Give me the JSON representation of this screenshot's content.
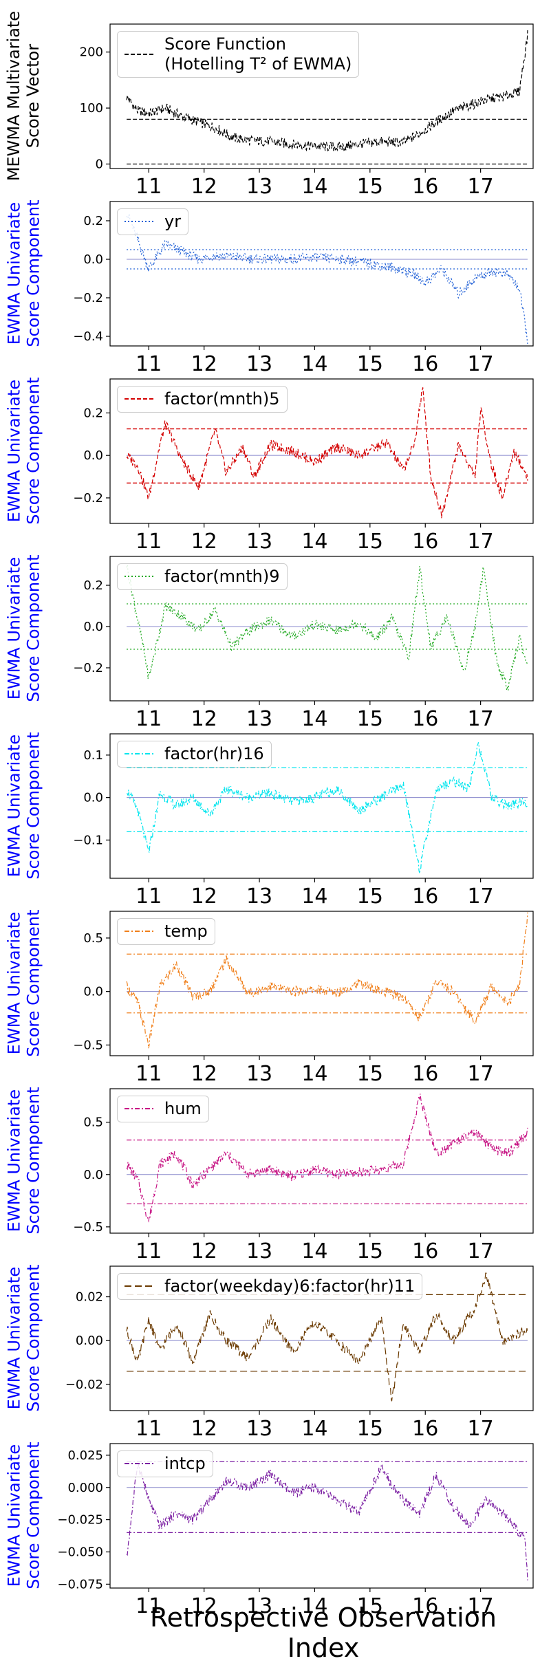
{
  "xlabel": "Retrospective Observation Index",
  "chart_data": [
    {
      "type": "line",
      "ylabel": [
        "MEWMA Multivariate",
        "Score Vector"
      ],
      "ylabel_color": "#000000",
      "legend": [
        "Score Function",
        "(Hotelling T² of EWMA)"
      ],
      "legend_placement": "top-left",
      "color": "#000000",
      "line_style": "dashed",
      "x_ticks": [
        "11",
        "12",
        "13",
        "14",
        "15",
        "16",
        "17"
      ],
      "ylim": [
        -8,
        250
      ],
      "y_ticks": [
        0,
        100,
        200
      ],
      "y_tick_labels": [
        "0",
        "100",
        "200"
      ],
      "control_limits": [
        80,
        0
      ],
      "series": [
        {
          "x": [
            10.6,
            10.8,
            11.0,
            11.3,
            11.6,
            11.9,
            12.2,
            12.5,
            12.8,
            13.2,
            13.6,
            14.0,
            14.4,
            14.8,
            15.2,
            15.6,
            15.9,
            16.2,
            16.5,
            16.8,
            17.1,
            17.4,
            17.7,
            17.85
          ],
          "values": [
            120,
            95,
            90,
            100,
            85,
            75,
            65,
            48,
            42,
            40,
            35,
            32,
            30,
            35,
            40,
            38,
            55,
            75,
            95,
            105,
            115,
            120,
            130,
            230
          ]
        }
      ]
    },
    {
      "type": "line",
      "ylabel": [
        "EWMA Univariate",
        "Score Component"
      ],
      "ylabel_color": "#0000ff",
      "legend": [
        "yr"
      ],
      "legend_placement": "top-left",
      "color": "#1f5fd6",
      "line_style": "dotted",
      "x_ticks": [
        "11",
        "12",
        "13",
        "14",
        "15",
        "16",
        "17"
      ],
      "ylim": [
        -0.45,
        0.3
      ],
      "y_ticks": [
        -0.4,
        -0.2,
        0.0,
        0.2
      ],
      "y_tick_labels": [
        "−0.4",
        "−0.2",
        "0.0",
        "0.2"
      ],
      "control_limits": [
        0.05,
        -0.05
      ],
      "series": [
        {
          "x": [
            10.6,
            10.8,
            11.0,
            11.3,
            11.6,
            11.9,
            12.2,
            12.6,
            13.0,
            13.5,
            14.0,
            14.5,
            15.0,
            15.5,
            15.8,
            16.0,
            16.3,
            16.6,
            16.9,
            17.2,
            17.5,
            17.7,
            17.85
          ],
          "values": [
            0.25,
            0.1,
            -0.05,
            0.08,
            0.04,
            0.0,
            0.02,
            0.01,
            0.0,
            0.0,
            0.01,
            0.0,
            -0.02,
            -0.05,
            -0.08,
            -0.12,
            -0.05,
            -0.18,
            -0.1,
            -0.06,
            -0.08,
            -0.15,
            -0.42
          ]
        }
      ]
    },
    {
      "type": "line",
      "ylabel": [
        "EWMA Univariate",
        "Score Component"
      ],
      "ylabel_color": "#0000ff",
      "legend": [
        "factor(mnth)5"
      ],
      "legend_placement": "top-left",
      "color": "#d40000",
      "line_style": "dashed",
      "x_ticks": [
        "11",
        "12",
        "13",
        "14",
        "15",
        "16",
        "17"
      ],
      "ylim": [
        -0.32,
        0.36
      ],
      "y_ticks": [
        -0.2,
        0.0,
        0.2
      ],
      "y_tick_labels": [
        "−0.2",
        "0.0",
        "0.2"
      ],
      "control_limits": [
        0.125,
        -0.13
      ],
      "series": [
        {
          "x": [
            10.6,
            10.8,
            11.0,
            11.2,
            11.3,
            11.6,
            11.9,
            12.2,
            12.4,
            12.7,
            12.9,
            13.2,
            13.6,
            14.0,
            14.4,
            14.8,
            15.3,
            15.6,
            15.8,
            15.95,
            16.1,
            16.3,
            16.6,
            16.9,
            17.0,
            17.2,
            17.4,
            17.6,
            17.85
          ],
          "values": [
            0.0,
            -0.05,
            -0.2,
            0.05,
            0.15,
            -0.02,
            -0.15,
            0.12,
            -0.08,
            0.04,
            -0.1,
            0.05,
            0.02,
            -0.03,
            0.04,
            0.0,
            0.06,
            -0.07,
            0.05,
            0.32,
            -0.1,
            -0.28,
            0.05,
            -0.1,
            0.22,
            -0.05,
            -0.2,
            0.02,
            -0.1
          ]
        }
      ]
    },
    {
      "type": "line",
      "ylabel": [
        "EWMA Univariate",
        "Score Component"
      ],
      "ylabel_color": "#0000ff",
      "legend": [
        "factor(mnth)9"
      ],
      "legend_placement": "top-left",
      "color": "#22aa22",
      "line_style": "dotted",
      "x_ticks": [
        "11",
        "12",
        "13",
        "14",
        "15",
        "16",
        "17"
      ],
      "ylim": [
        -0.36,
        0.34
      ],
      "y_ticks": [
        -0.2,
        0.0,
        0.2
      ],
      "y_tick_labels": [
        "−0.2",
        "0.0",
        "0.2"
      ],
      "control_limits": [
        0.11,
        -0.11
      ],
      "series": [
        {
          "x": [
            10.6,
            10.75,
            10.9,
            11.0,
            11.3,
            11.6,
            11.9,
            12.2,
            12.5,
            12.8,
            13.2,
            13.6,
            14.0,
            14.4,
            14.8,
            15.1,
            15.4,
            15.7,
            15.9,
            16.1,
            16.4,
            16.7,
            16.9,
            17.05,
            17.3,
            17.5,
            17.7,
            17.85
          ],
          "values": [
            0.3,
            0.1,
            -0.1,
            -0.25,
            0.1,
            0.05,
            -0.02,
            0.08,
            -0.1,
            -0.02,
            0.03,
            -0.05,
            0.01,
            -0.02,
            0.02,
            -0.06,
            0.04,
            -0.15,
            0.28,
            -0.1,
            0.05,
            -0.22,
            0.0,
            0.28,
            -0.18,
            -0.3,
            -0.05,
            -0.2
          ]
        }
      ]
    },
    {
      "type": "line",
      "ylabel": [
        "EWMA Univariate",
        "Score Component"
      ],
      "ylabel_color": "#0000ff",
      "legend": [
        "factor(hr)16"
      ],
      "legend_placement": "top-left",
      "color": "#00e5ee",
      "line_style": "dashdot",
      "x_ticks": [
        "11",
        "12",
        "13",
        "14",
        "15",
        "16",
        "17"
      ],
      "ylim": [
        -0.19,
        0.15
      ],
      "y_ticks": [
        -0.1,
        0.0,
        0.1
      ],
      "y_tick_labels": [
        "−0.1",
        "0.0",
        "0.1"
      ],
      "control_limits": [
        0.07,
        -0.08
      ],
      "series": [
        {
          "x": [
            10.6,
            10.8,
            11.0,
            11.2,
            11.5,
            11.8,
            12.1,
            12.4,
            12.8,
            13.2,
            13.6,
            14.0,
            14.4,
            14.8,
            15.2,
            15.6,
            15.9,
            16.2,
            16.5,
            16.8,
            16.95,
            17.2,
            17.5,
            17.85
          ],
          "values": [
            0.02,
            -0.03,
            -0.13,
            0.01,
            -0.02,
            0.0,
            -0.04,
            0.02,
            0.0,
            0.01,
            -0.01,
            0.0,
            0.02,
            -0.03,
            0.0,
            0.03,
            -0.17,
            0.02,
            0.04,
            0.02,
            0.13,
            0.0,
            -0.02,
            -0.01
          ]
        }
      ]
    },
    {
      "type": "line",
      "ylabel": [
        "EWMA Univariate",
        "Score Component"
      ],
      "ylabel_color": "#0000ff",
      "legend": [
        "temp"
      ],
      "legend_placement": "top-left",
      "color": "#f07f1a",
      "line_style": "dashdot",
      "x_ticks": [
        "11",
        "12",
        "13",
        "14",
        "15",
        "16",
        "17"
      ],
      "ylim": [
        -0.6,
        0.75
      ],
      "y_ticks": [
        -0.5,
        0.0,
        0.5
      ],
      "y_tick_labels": [
        "−0.5",
        "0.0",
        "0.5"
      ],
      "control_limits": [
        0.35,
        -0.2
      ],
      "series": [
        {
          "x": [
            10.6,
            10.8,
            11.0,
            11.2,
            11.5,
            11.8,
            12.1,
            12.4,
            12.8,
            13.2,
            13.6,
            14.0,
            14.4,
            14.8,
            15.2,
            15.6,
            15.9,
            16.2,
            16.5,
            16.9,
            17.2,
            17.5,
            17.7,
            17.85
          ],
          "values": [
            0.05,
            -0.1,
            -0.5,
            0.05,
            0.25,
            -0.05,
            0.0,
            0.3,
            -0.02,
            0.05,
            0.0,
            0.02,
            -0.01,
            0.08,
            0.0,
            -0.05,
            -0.25,
            0.1,
            0.0,
            -0.28,
            0.05,
            -0.1,
            0.05,
            0.7
          ]
        }
      ]
    },
    {
      "type": "line",
      "ylabel": [
        "EWMA Univariate",
        "Score Component"
      ],
      "ylabel_color": "#0000ff",
      "legend": [
        "hum"
      ],
      "legend_placement": "top-left",
      "color": "#c71585",
      "line_style": "dashdot",
      "x_ticks": [
        "11",
        "12",
        "13",
        "14",
        "15",
        "16",
        "17"
      ],
      "ylim": [
        -0.56,
        0.82
      ],
      "y_ticks": [
        -0.5,
        0.0,
        0.5
      ],
      "y_tick_labels": [
        "−0.5",
        "0.0",
        "0.5"
      ],
      "control_limits": [
        0.33,
        -0.28
      ],
      "series": [
        {
          "x": [
            10.6,
            10.8,
            11.0,
            11.2,
            11.5,
            11.8,
            12.1,
            12.4,
            12.8,
            13.2,
            13.6,
            14.0,
            14.4,
            14.8,
            15.2,
            15.6,
            15.9,
            16.2,
            16.5,
            16.9,
            17.2,
            17.5,
            17.85
          ],
          "values": [
            0.1,
            -0.05,
            -0.45,
            0.1,
            0.2,
            -0.1,
            0.05,
            0.2,
            0.0,
            0.05,
            -0.02,
            0.05,
            0.0,
            0.02,
            0.05,
            0.1,
            0.75,
            0.2,
            0.3,
            0.4,
            0.25,
            0.2,
            0.4
          ]
        }
      ]
    },
    {
      "type": "line",
      "ylabel": [
        "EWMA Univariate",
        "Score Component"
      ],
      "ylabel_color": "#0000ff",
      "legend": [
        "factor(weekday)6:factor(hr)11"
      ],
      "legend_placement": "top-left",
      "color": "#6b3a00",
      "line_style": "longdash",
      "x_ticks": [
        "11",
        "12",
        "13",
        "14",
        "15",
        "16",
        "17"
      ],
      "ylim": [
        -0.032,
        0.034
      ],
      "y_ticks": [
        -0.02,
        0.0,
        0.02
      ],
      "y_tick_labels": [
        "−0.02",
        "0.00",
        "0.02"
      ],
      "control_limits": [
        0.021,
        -0.014
      ],
      "series": [
        {
          "x": [
            10.6,
            10.8,
            11.0,
            11.2,
            11.5,
            11.8,
            12.1,
            12.4,
            12.8,
            13.2,
            13.6,
            14.0,
            14.4,
            14.8,
            15.2,
            15.4,
            15.6,
            15.9,
            16.2,
            16.5,
            16.9,
            17.1,
            17.4,
            17.85
          ],
          "values": [
            0.005,
            -0.01,
            0.01,
            -0.005,
            0.008,
            -0.01,
            0.012,
            0.0,
            -0.008,
            0.01,
            -0.005,
            0.008,
            0.0,
            -0.01,
            0.01,
            -0.028,
            0.008,
            -0.005,
            0.012,
            0.0,
            0.015,
            0.03,
            0.0,
            0.005
          ]
        }
      ]
    },
    {
      "type": "line",
      "ylabel": [
        "EWMA Univariate",
        "Score Component"
      ],
      "ylabel_color": "#0000ff",
      "legend": [
        "intcp"
      ],
      "legend_placement": "top-left",
      "color": "#7b1fa2",
      "line_style": "dashdot",
      "x_ticks": [
        "11",
        "12",
        "13",
        "14",
        "15",
        "16",
        "17"
      ],
      "ylim": [
        -0.078,
        0.034
      ],
      "y_ticks": [
        -0.075,
        -0.05,
        -0.025,
        0.0,
        0.025
      ],
      "y_tick_labels": [
        "−0.075",
        "−0.050",
        "−0.025",
        "0.000",
        "0.025"
      ],
      "control_limits": [
        0.02,
        -0.035
      ],
      "series": [
        {
          "x": [
            10.6,
            10.8,
            11.0,
            11.2,
            11.5,
            11.8,
            12.1,
            12.4,
            12.8,
            13.2,
            13.6,
            14.0,
            14.4,
            14.8,
            15.2,
            15.6,
            15.9,
            16.2,
            16.5,
            16.8,
            17.1,
            17.4,
            17.6,
            17.8,
            17.85
          ],
          "values": [
            -0.055,
            0.02,
            -0.01,
            -0.03,
            -0.02,
            -0.025,
            -0.01,
            0.005,
            0.0,
            0.01,
            -0.005,
            0.0,
            -0.01,
            -0.02,
            0.015,
            -0.01,
            -0.02,
            0.01,
            -0.015,
            -0.03,
            -0.01,
            -0.02,
            -0.03,
            -0.04,
            -0.07
          ]
        }
      ]
    }
  ]
}
